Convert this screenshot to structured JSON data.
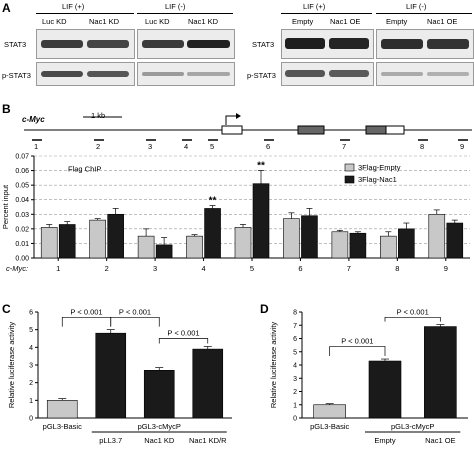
{
  "panel_labels": {
    "a": "A",
    "b": "B",
    "c": "C",
    "d": "D"
  },
  "panel_a": {
    "left_groups": [
      {
        "header": "LIF (+)",
        "lanes": [
          "Luc KD",
          "Nac1 KD"
        ]
      },
      {
        "header": "LIF (-)",
        "lanes": [
          "Luc KD",
          "Nac1 KD"
        ]
      }
    ],
    "right_groups": [
      {
        "header": "LIF (+)",
        "lanes": [
          "Empty",
          "Nac1 OE"
        ]
      },
      {
        "header": "LIF (-)",
        "lanes": [
          "Empty",
          "Nac1 OE"
        ]
      }
    ],
    "row_labels": [
      "STAT3",
      "p-STAT3"
    ]
  },
  "panel_b": {
    "gene_label": "c-Myc",
    "scale_label": "1 kb",
    "region_numbers": [
      "1",
      "2",
      "3",
      "4",
      "5",
      "6",
      "7",
      "8",
      "9"
    ],
    "chart_data": {
      "type": "bar",
      "ylabel": "Percent input",
      "xlabel": "c-Myc:",
      "annotation": "Flag ChIP",
      "categories": [
        "1",
        "2",
        "3",
        "4",
        "5",
        "6",
        "7",
        "8",
        "9"
      ],
      "ylim": [
        0,
        0.07
      ],
      "yticks": [
        "0.00",
        "0.01",
        "0.02",
        "0.03",
        "0.04",
        "0.05",
        "0.06",
        "0.07"
      ],
      "series": [
        {
          "name": "3Flag-Empty",
          "color": "#c8c8c8",
          "values": [
            0.021,
            0.026,
            0.015,
            0.015,
            0.021,
            0.027,
            0.018,
            0.015,
            0.03
          ],
          "errors": [
            0.002,
            0.001,
            0.005,
            0.001,
            0.002,
            0.004,
            0.001,
            0.003,
            0.003
          ]
        },
        {
          "name": "3Flag-Nac1",
          "color": "#1a1a1a",
          "values": [
            0.023,
            0.03,
            0.009,
            0.034,
            0.051,
            0.029,
            0.017,
            0.02,
            0.024
          ],
          "errors": [
            0.002,
            0.004,
            0.005,
            0.002,
            0.009,
            0.005,
            0.001,
            0.004,
            0.002
          ]
        }
      ],
      "sig_marks": [
        {
          "category": "4",
          "text": "**"
        },
        {
          "category": "5",
          "text": "**"
        }
      ]
    }
  },
  "panel_c": {
    "chart_data": {
      "type": "bar",
      "ylabel": "Relative luciferase activity",
      "categories": [
        "pGL3-Basic",
        "pLL3.7",
        "Nac1 KD",
        "Nac1 KD/R"
      ],
      "group_label": "pGL3-cMycP",
      "ylim": [
        0,
        6
      ],
      "yticks": [
        "0",
        "1",
        "2",
        "3",
        "4",
        "5",
        "6"
      ],
      "values": [
        1.0,
        4.8,
        2.7,
        3.9
      ],
      "errors": [
        0.1,
        0.2,
        0.15,
        0.15
      ],
      "colors": [
        "#c8c8c8",
        "#1a1a1a",
        "#1a1a1a",
        "#1a1a1a"
      ],
      "comparisons": [
        {
          "from": 0,
          "to": 1,
          "text": "P < 0.001"
        },
        {
          "from": 1,
          "to": 2,
          "text": "P < 0.001"
        },
        {
          "from": 2,
          "to": 3,
          "text": "P < 0.001"
        }
      ]
    }
  },
  "panel_d": {
    "chart_data": {
      "type": "bar",
      "ylabel": "Relative luciferase activity",
      "categories": [
        "pGL3-Basic",
        "Empty",
        "Nac1 OE"
      ],
      "group_label": "pGL3-cMycP",
      "ylim": [
        0,
        8
      ],
      "yticks": [
        "0",
        "1",
        "2",
        "3",
        "4",
        "5",
        "6",
        "7",
        "8"
      ],
      "values": [
        1.0,
        4.3,
        6.9
      ],
      "errors": [
        0.08,
        0.15,
        0.15
      ],
      "colors": [
        "#c8c8c8",
        "#1a1a1a",
        "#1a1a1a"
      ],
      "comparisons": [
        {
          "from": 0,
          "to": 1,
          "text": "P < 0.001"
        },
        {
          "from": 1,
          "to": 2,
          "text": "P < 0.001"
        }
      ]
    }
  }
}
